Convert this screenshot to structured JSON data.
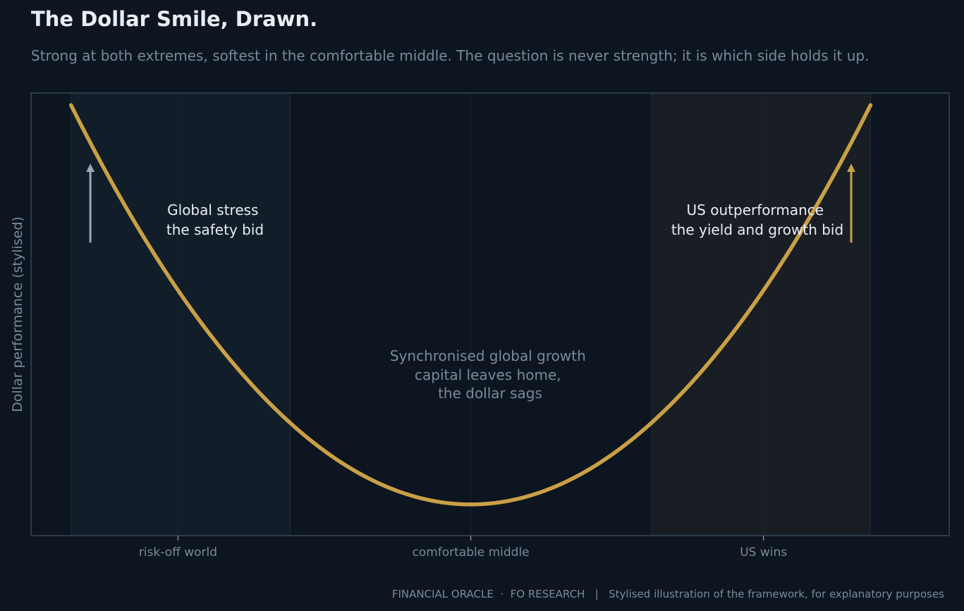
{
  "header": {
    "title": "The Dollar Smile, Drawn.",
    "subtitle": "Strong at both extremes, softest in the comfortable middle. The question is never strength; it is which side holds it up."
  },
  "footer": {
    "text": "FINANCIAL ORACLE  ·  FO RESEARCH   |   Stylised illustration of the framework, for explanatory purposes"
  },
  "colors": {
    "background": "#0c1520",
    "curve": "#c9a046",
    "riskoff_arrow": "#9aa9b8",
    "uswins_arrow": "#c9a046",
    "riskoff_band": "#111d28",
    "uswins_band": "#181e24",
    "frame": "#2a3a4a",
    "text_primary": "#e8edf3",
    "text_muted": "#7a8a9b"
  },
  "chart_data": {
    "type": "line",
    "title": "The Dollar Smile, Drawn.",
    "subtitle": "Strong at both extremes, softest in the comfortable middle. The question is never strength; it is which side holds it up.",
    "xlabel": "",
    "ylabel": "Dollar performance (stylised)",
    "xlim": [
      -3.41,
      3.71
    ],
    "ylim": [
      -0.25,
      3.3
    ],
    "ticks": [
      {
        "x": -2.27,
        "label": "risk-off world"
      },
      {
        "x": 0,
        "label": "comfortable middle"
      },
      {
        "x": 2.27,
        "label": "US wins"
      }
    ],
    "regions": [
      {
        "id": "risk-off",
        "x0": -3.1,
        "x1": -1.4,
        "fill": "riskoff_band"
      },
      {
        "id": "us-wins",
        "x0": 1.4,
        "x1": 3.1,
        "fill": "uswins_band"
      }
    ],
    "curve": {
      "equation": "y = x^2 / 3",
      "x_range": [
        -3.1,
        3.1
      ]
    },
    "arrows": [
      {
        "id": "safety-arrow",
        "x": -2.95,
        "y0": 2.1,
        "y1": 2.7,
        "color": "riskoff_arrow"
      },
      {
        "id": "yield-arrow",
        "x": 2.95,
        "y0": 2.1,
        "y1": 2.7,
        "color": "uswins_arrow"
      }
    ],
    "annotations": [
      {
        "id": "global-stress",
        "x": -2.07,
        "y": 2.45,
        "lines": [
          "Global stress",
          "the safety bid"
        ],
        "style": "title"
      },
      {
        "id": "us-outperformance",
        "x": 2.0,
        "y": 2.45,
        "lines": [
          "US outperformance",
          "the yield and growth bid"
        ],
        "style": "title"
      },
      {
        "id": "synchronised-growth",
        "x": 0,
        "y": 1.2,
        "lines": [
          "Synchronised global growth",
          "capital leaves home,",
          "the dollar sags"
        ],
        "style": "mid"
      }
    ],
    "grid": false,
    "legend": "none"
  }
}
